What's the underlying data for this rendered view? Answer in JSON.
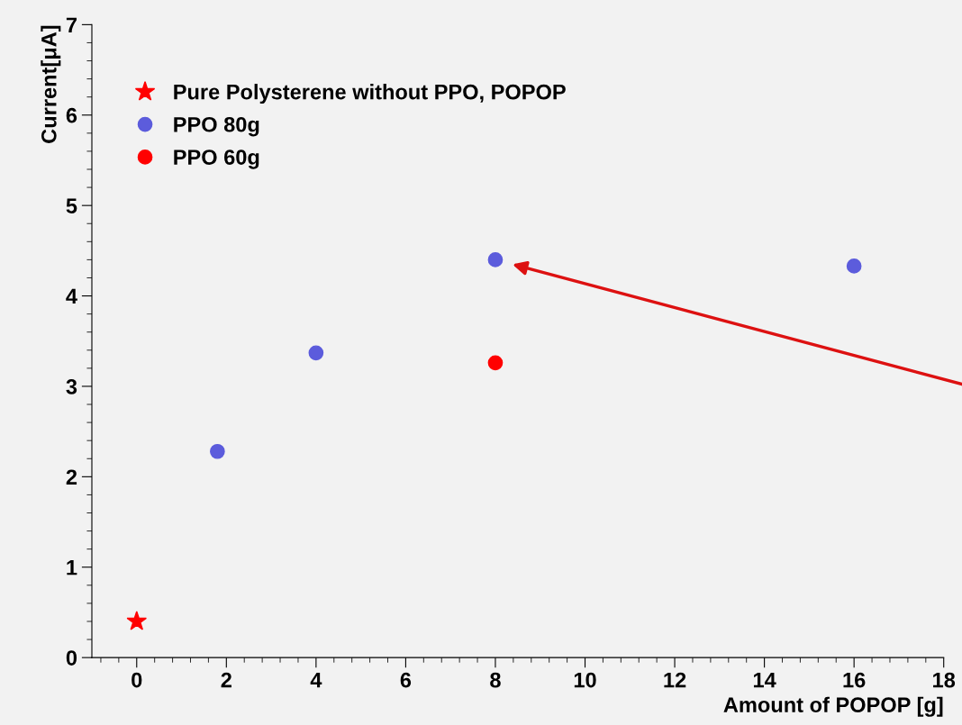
{
  "chart_data": {
    "type": "scatter",
    "xlabel": "Amount of POPOP [g]",
    "ylabel": "Current[μA]",
    "xlim": [
      -1,
      18
    ],
    "ylim": [
      0,
      7
    ],
    "xticks": [
      0,
      2,
      4,
      6,
      8,
      10,
      12,
      14,
      16,
      18
    ],
    "yticks": [
      0,
      1,
      2,
      3,
      4,
      5,
      6,
      7
    ],
    "grid": false,
    "legend": "top left",
    "marker": "circle",
    "series": [
      {
        "name": "Pure Polysterene without PPO, POPOP",
        "color": "#ff0000",
        "marker": "star",
        "x": [
          0
        ],
        "values": [
          0.4
        ]
      },
      {
        "name": "PPO 80g",
        "color": "#5c5cdc",
        "x": [
          1.8,
          4,
          8,
          16
        ],
        "values": [
          2.28,
          3.37,
          4.4,
          4.33
        ]
      },
      {
        "name": "PPO 60g",
        "color": "#ff0000",
        "x": [
          8
        ],
        "values": [
          3.26
        ]
      }
    ]
  }
}
